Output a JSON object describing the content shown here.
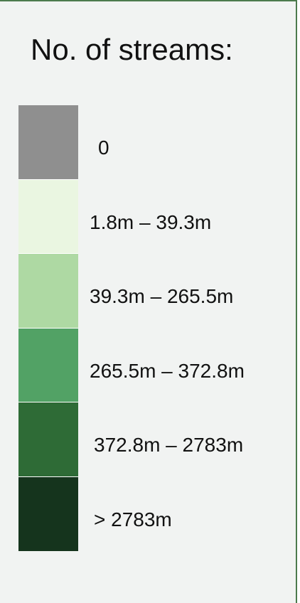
{
  "legend": {
    "title": "No. of streams:",
    "items": [
      {
        "label": "0",
        "color": "#8f8f8f"
      },
      {
        "label": "1.8m – 39.3m",
        "color": "#eaf6e1"
      },
      {
        "label": "39.3m – 265.5m",
        "color": "#aed9a3"
      },
      {
        "label": "265.5m – 372.8m",
        "color": "#52a265"
      },
      {
        "label": "372.8m – 2783m",
        "color": "#2e6b36"
      },
      {
        "label": "> 2783m",
        "color": "#15341d"
      }
    ]
  }
}
